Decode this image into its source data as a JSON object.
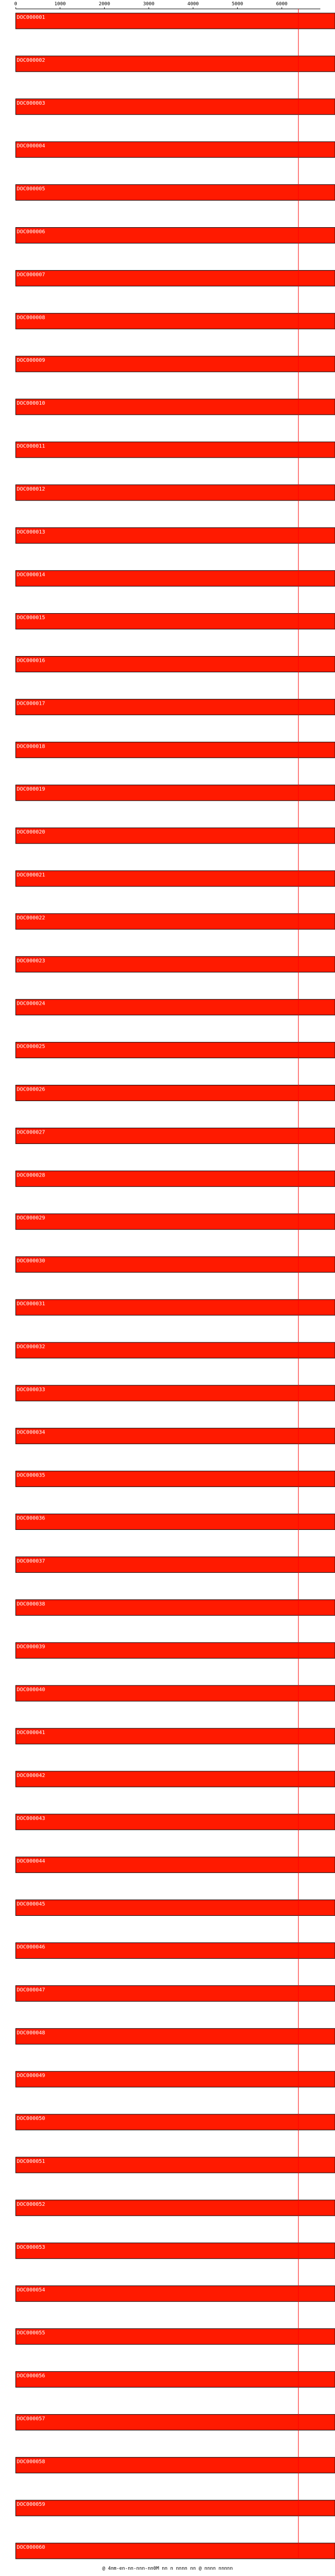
{
  "chart_data": {
    "type": "bar",
    "orientation": "horizontal",
    "bar_color": "#ff1a00",
    "bar_edge_color": "#000000",
    "reference_line_color": "#ff0000",
    "xlim": [
      0,
      7200
    ],
    "xticks": [
      0,
      1000,
      2000,
      3000,
      4000,
      5000,
      6000
    ],
    "xtick_labels": [
      "0",
      "1000",
      "2000",
      "3000",
      "4000",
      "5000",
      "6000"
    ],
    "reference_line": 6375,
    "categories": [
      "DOC000001",
      "DOC000002",
      "DOC000003",
      "DOC000004",
      "DOC000005",
      "DOC000006",
      "DOC000007",
      "DOC000008",
      "DOC000009",
      "DOC000010",
      "DOC000011",
      "DOC000012",
      "DOC000013",
      "DOC000014",
      "DOC000015",
      "DOC000016",
      "DOC000017",
      "DOC000018",
      "DOC000019",
      "DOC000020",
      "DOC000021",
      "DOC000022",
      "DOC000023",
      "DOC000024",
      "DOC000025",
      "DOC000026",
      "DOC000027",
      "DOC000028",
      "DOC000029",
      "DOC000030",
      "DOC000031",
      "DOC000032",
      "DOC000033",
      "DOC000034",
      "DOC000035",
      "DOC000036",
      "DOC000037",
      "DOC000038",
      "DOC000039",
      "DOC000040",
      "DOC000041",
      "DOC000042",
      "DOC000043",
      "DOC000044",
      "DOC000045",
      "DOC000046",
      "DOC000047",
      "DOC000048",
      "DOC000049",
      "DOC000050",
      "DOC000051",
      "DOC000052",
      "DOC000053",
      "DOC000054",
      "DOC000055",
      "DOC000056",
      "DOC000057",
      "DOC000058",
      "DOC000059",
      "DOC000060"
    ],
    "values": [
      7200,
      7200,
      7200,
      7200,
      7200,
      7200,
      7200,
      7200,
      7200,
      7200,
      7200,
      7200,
      7200,
      7200,
      7200,
      7200,
      7200,
      7200,
      7200,
      7200,
      7200,
      7200,
      7200,
      7200,
      7200,
      7200,
      7200,
      7200,
      7200,
      7200,
      7200,
      7200,
      7200,
      7200,
      7200,
      7200,
      7200,
      7200,
      7200,
      7200,
      7200,
      7200,
      7200,
      7200,
      7200,
      7200,
      7200,
      7200,
      7200,
      7200,
      7200,
      7200,
      7200,
      7200,
      7200,
      7200,
      7200,
      7200,
      7200,
      7200
    ],
    "grid": false,
    "legend": "none"
  },
  "footer": {
    "text": "@ 4nm-en-nn-nnn-nn0M nn n nnnn nn @ nnnn nnnnn"
  }
}
